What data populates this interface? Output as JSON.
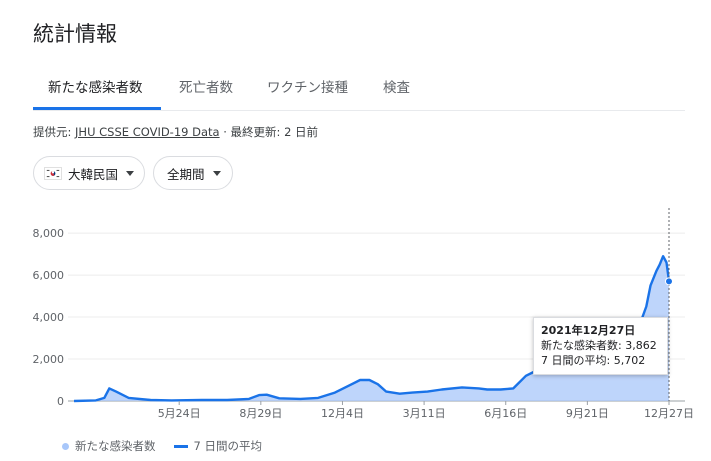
{
  "title": "統計情報",
  "tabs": [
    {
      "label": "新たな感染者数",
      "active": true
    },
    {
      "label": "死亡者数",
      "active": false
    },
    {
      "label": "ワクチン接種",
      "active": false
    },
    {
      "label": "検査",
      "active": false
    }
  ],
  "source": {
    "prefix": "提供元: ",
    "link": "JHU CSSE COVID-19 Data",
    "suffix": " · 最終更新: 2 日前"
  },
  "filters": {
    "region": {
      "label": "大韓民国",
      "icon": "korea-flag-icon"
    },
    "period": {
      "label": "全期間"
    }
  },
  "tooltip": {
    "date": "2021年12月27日",
    "cases": "新たな感染者数: 3,862",
    "avg": "7 日間の平均: 5,702"
  },
  "legend": {
    "cases": "新たな感染者数",
    "avg": "7 日間の平均"
  },
  "colors": {
    "accent": "#1a73e8",
    "area": "#a8c7fa"
  },
  "chart_data": {
    "type": "area",
    "y_ticks": [
      "0",
      "2,000",
      "4,000",
      "6,000",
      "8,000"
    ],
    "y_tick_values": [
      0,
      2000,
      4000,
      6000,
      8000
    ],
    "ylim": [
      0,
      9100
    ],
    "x_ticks": [
      "5月24日",
      "8月29日",
      "12月4日",
      "3月11日",
      "6月16日",
      "9月21日",
      "12月27日"
    ],
    "x_range": [
      "2020-01-20",
      "2021-12-27"
    ],
    "x_tick_dates": [
      "2020-05-24",
      "2020-08-29",
      "2020-12-04",
      "2021-03-11",
      "2021-06-16",
      "2021-09-21",
      "2021-12-27"
    ],
    "series": [
      {
        "name": "7 日間の平均",
        "dates": [
          "2020-01-20",
          "2020-02-15",
          "2020-02-25",
          "2020-03-02",
          "2020-03-10",
          "2020-03-25",
          "2020-04-20",
          "2020-05-15",
          "2020-06-20",
          "2020-07-20",
          "2020-08-15",
          "2020-08-27",
          "2020-09-05",
          "2020-09-20",
          "2020-10-15",
          "2020-11-05",
          "2020-11-25",
          "2020-12-10",
          "2020-12-25",
          "2021-01-05",
          "2021-01-15",
          "2021-01-25",
          "2021-02-10",
          "2021-02-25",
          "2021-03-15",
          "2021-04-01",
          "2021-04-25",
          "2021-05-15",
          "2021-05-25",
          "2021-06-10",
          "2021-06-25",
          "2021-07-10",
          "2021-07-25",
          "2021-08-10",
          "2021-08-25",
          "2021-09-10",
          "2021-09-25",
          "2021-10-05",
          "2021-10-20",
          "2021-11-01",
          "2021-11-10",
          "2021-11-20",
          "2021-11-30",
          "2021-12-05",
          "2021-12-12",
          "2021-12-16",
          "2021-12-20",
          "2021-12-24",
          "2021-12-27"
        ],
        "values": [
          0,
          30,
          150,
          600,
          450,
          150,
          50,
          30,
          50,
          50,
          100,
          280,
          300,
          130,
          100,
          150,
          400,
          700,
          1000,
          1000,
          800,
          450,
          350,
          400,
          450,
          550,
          650,
          600,
          550,
          550,
          600,
          1200,
          1500,
          1700,
          1800,
          2000,
          2200,
          1800,
          1500,
          2000,
          2700,
          3400,
          4500,
          5500,
          6200,
          6500,
          6900,
          6600,
          5702
        ]
      }
    ],
    "tooltip_point": {
      "date": "2021-12-27",
      "cases": 3862,
      "avg": 5702
    },
    "grid": true,
    "legend_position": "bottom-left"
  }
}
